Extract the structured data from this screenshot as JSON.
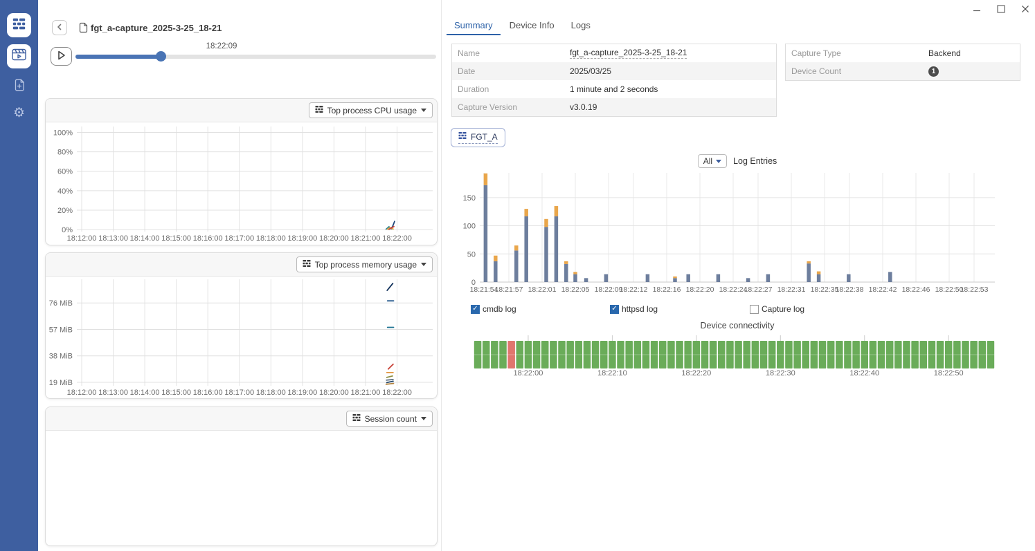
{
  "header": {
    "title": "fgt_a-capture_2025-3-25_18-21"
  },
  "player": {
    "time_label": "18:22:09",
    "progress_pct": 23.6
  },
  "sidebar": {
    "icons": [
      "app-logo",
      "capture-player",
      "file-add",
      "settings"
    ]
  },
  "left_panels": [
    {
      "id": "cpu",
      "dropdown_label": "Top process CPU usage"
    },
    {
      "id": "mem",
      "dropdown_label": "Top process memory usage"
    },
    {
      "id": "session",
      "dropdown_label": "Session count"
    }
  ],
  "tabs": [
    {
      "label": "Summary",
      "active": true
    },
    {
      "label": "Device Info",
      "active": false
    },
    {
      "label": "Logs",
      "active": false
    }
  ],
  "summary_table": {
    "rows": [
      [
        "Name",
        "fgt_a-capture_2025-3-25_18-21"
      ],
      [
        "Date",
        "2025/03/25"
      ],
      [
        "Duration",
        "1 minute and 2 seconds"
      ],
      [
        "Capture Version",
        "v3.0.19"
      ]
    ]
  },
  "capture_table": {
    "rows": [
      [
        "Capture Type",
        "Backend"
      ],
      [
        "Device Count",
        "1"
      ]
    ]
  },
  "device_chip": {
    "label": "FGT_A"
  },
  "log_entries": {
    "filter_label": "All",
    "title": "Log Entries",
    "legend": [
      {
        "label": "cmdb log",
        "checked": true
      },
      {
        "label": "httpsd log",
        "checked": true
      },
      {
        "label": "Capture log",
        "checked": false
      }
    ]
  },
  "device_connectivity": {
    "title": "Device connectivity"
  },
  "colors": {
    "accent": "#2d62a8",
    "sidebar": "#3e5fa0",
    "slider": "#4a74b5"
  },
  "chart_data": [
    {
      "id": "cpu",
      "type": "line",
      "title": "Top process CPU usage",
      "xticks": [
        "18:12:00",
        "18:13:00",
        "18:14:00",
        "18:15:00",
        "18:16:00",
        "18:17:00",
        "18:18:00",
        "18:19:00",
        "18:20:00",
        "18:21:00",
        "18:22:00"
      ],
      "yticks": [
        "0%",
        "20%",
        "40%",
        "60%",
        "80%",
        "100%"
      ],
      "ytick_values": [
        0,
        20,
        40,
        60,
        80,
        100
      ],
      "ylim": [
        -2,
        106
      ],
      "series": [
        {
          "name": "navy-spike",
          "color": "#1d4679",
          "points": [
            [
              0.879,
              0.5
            ],
            [
              0.887,
              3
            ],
            [
              0.893,
              8.5
            ]
          ]
        },
        {
          "name": "teal-bump",
          "color": "#2a7f8f",
          "points": [
            [
              0.869,
              0.5
            ],
            [
              0.877,
              3
            ],
            [
              0.885,
              0.8
            ]
          ]
        },
        {
          "name": "gold-bump",
          "color": "#e0ac3e",
          "points": [
            [
              0.873,
              0.5
            ],
            [
              0.881,
              2.2
            ],
            [
              0.889,
              0.6
            ]
          ]
        },
        {
          "name": "red-rise",
          "color": "#c9473e",
          "points": [
            [
              0.877,
              0.3
            ],
            [
              0.891,
              3.2
            ]
          ]
        }
      ]
    },
    {
      "id": "mem",
      "type": "line",
      "title": "Top process memory usage",
      "xticks": [
        "18:12:00",
        "18:13:00",
        "18:14:00",
        "18:15:00",
        "18:16:00",
        "18:17:00",
        "18:18:00",
        "18:19:00",
        "18:20:00",
        "18:21:00",
        "18:22:00"
      ],
      "yticks": [
        "19 MiB",
        "38 MiB",
        "57 MiB",
        "76 MiB"
      ],
      "ytick_values": [
        19,
        38,
        57,
        76
      ],
      "ylim": [
        16.5,
        93
      ],
      "series": [
        {
          "name": "proc-1",
          "color": "#16355e",
          "points": [
            [
              0.872,
              85
            ],
            [
              0.888,
              90
            ]
          ]
        },
        {
          "name": "proc-2",
          "color": "#2d5f91",
          "points": [
            [
              0.873,
              77.5
            ],
            [
              0.89,
              77.5
            ]
          ]
        },
        {
          "name": "proc-3",
          "color": "#1d7292",
          "points": [
            [
              0.873,
              58.5
            ],
            [
              0.89,
              58.5
            ]
          ]
        },
        {
          "name": "proc-4",
          "color": "#c9473e",
          "points": [
            [
              0.875,
              28.5
            ],
            [
              0.889,
              32
            ]
          ]
        },
        {
          "name": "proc-5",
          "color": "#e2953f",
          "points": [
            [
              0.871,
              26
            ],
            [
              0.889,
              26
            ]
          ]
        },
        {
          "name": "proc-6",
          "color": "#8f8f42",
          "points": [
            [
              0.871,
              22.5
            ],
            [
              0.887,
              23.5
            ]
          ]
        },
        {
          "name": "proc-7",
          "color": "#5e6f80",
          "points": [
            [
              0.87,
              20.5
            ],
            [
              0.889,
              21
            ]
          ]
        },
        {
          "name": "proc-8",
          "color": "#27496b",
          "points": [
            [
              0.871,
              18.8
            ],
            [
              0.889,
              19.8
            ]
          ]
        },
        {
          "name": "proc-9",
          "color": "#b4833c",
          "points": [
            [
              0.869,
              17.6
            ],
            [
              0.89,
              18.2
            ]
          ]
        }
      ]
    },
    {
      "id": "session",
      "type": "line",
      "title": "Session count",
      "xticks": [],
      "yticks": [],
      "ytick_values": [],
      "ylim": [
        0,
        1
      ],
      "series": []
    },
    {
      "id": "log_entries",
      "type": "stacked-bar",
      "title": "Log Entries",
      "x_base": "18:21:00",
      "x_range_s": [
        53.5,
        115.5
      ],
      "xticks": [
        {
          "t": 54,
          "label": "18:21:54"
        },
        {
          "t": 57,
          "label": "18:21:57"
        },
        {
          "t": 61,
          "label": "18:22:01"
        },
        {
          "t": 65,
          "label": "18:22:05"
        },
        {
          "t": 69,
          "label": "18:22:09"
        },
        {
          "t": 72,
          "label": "18:22:12"
        },
        {
          "t": 76,
          "label": "18:22:16"
        },
        {
          "t": 80,
          "label": "18:22:20"
        },
        {
          "t": 84,
          "label": "18:22:24"
        },
        {
          "t": 87,
          "label": "18:22:27"
        },
        {
          "t": 91,
          "label": "18:22:31"
        },
        {
          "t": 95,
          "label": "18:22:35"
        },
        {
          "t": 98,
          "label": "18:22:38"
        },
        {
          "t": 102,
          "label": "18:22:42"
        },
        {
          "t": 106,
          "label": "18:22:46"
        },
        {
          "t": 110,
          "label": "18:22:50"
        },
        {
          "t": 113,
          "label": "18:22:53"
        }
      ],
      "ytick_values": [
        0,
        50,
        100,
        150
      ],
      "ylim": [
        0,
        194
      ],
      "series_colors": {
        "cmdb": "#6d7e9d",
        "httpsd": "#e9a64b"
      },
      "bars": [
        {
          "t": 54.2,
          "cmdb": 172,
          "httpsd": 21
        },
        {
          "t": 55.4,
          "cmdb": 37,
          "httpsd": 10
        },
        {
          "t": 57.9,
          "cmdb": 56,
          "httpsd": 9
        },
        {
          "t": 59.1,
          "cmdb": 117,
          "httpsd": 13
        },
        {
          "t": 61.5,
          "cmdb": 98,
          "httpsd": 14
        },
        {
          "t": 62.7,
          "cmdb": 117,
          "httpsd": 18
        },
        {
          "t": 63.9,
          "cmdb": 32,
          "httpsd": 5
        },
        {
          "t": 65.0,
          "cmdb": 14,
          "httpsd": 4
        },
        {
          "t": 66.3,
          "cmdb": 7,
          "httpsd": 0
        },
        {
          "t": 68.7,
          "cmdb": 14,
          "httpsd": 0
        },
        {
          "t": 73.7,
          "cmdb": 14,
          "httpsd": 0
        },
        {
          "t": 77.0,
          "cmdb": 7,
          "httpsd": 3
        },
        {
          "t": 78.6,
          "cmdb": 14,
          "httpsd": 0
        },
        {
          "t": 82.2,
          "cmdb": 14,
          "httpsd": 0
        },
        {
          "t": 85.8,
          "cmdb": 7,
          "httpsd": 0
        },
        {
          "t": 88.2,
          "cmdb": 14,
          "httpsd": 0
        },
        {
          "t": 93.1,
          "cmdb": 33,
          "httpsd": 4
        },
        {
          "t": 94.3,
          "cmdb": 14,
          "httpsd": 5
        },
        {
          "t": 97.9,
          "cmdb": 14,
          "httpsd": 0
        },
        {
          "t": 102.9,
          "cmdb": 18,
          "httpsd": 0
        }
      ]
    },
    {
      "id": "connectivity",
      "type": "status-strip",
      "title": "Device connectivity",
      "x_base": "18:21:00",
      "x_range_s": [
        53.5,
        115.5
      ],
      "cells": 62,
      "red_indices": [
        4
      ],
      "colors": {
        "ok": "#6aac59",
        "fail": "#e0766e"
      },
      "xticks": [
        {
          "t": 60,
          "label": "18:22:00"
        },
        {
          "t": 70,
          "label": "18:22:10"
        },
        {
          "t": 80,
          "label": "18:22:20"
        },
        {
          "t": 90,
          "label": "18:22:30"
        },
        {
          "t": 100,
          "label": "18:22:40"
        },
        {
          "t": 110,
          "label": "18:22:50"
        }
      ]
    }
  ]
}
